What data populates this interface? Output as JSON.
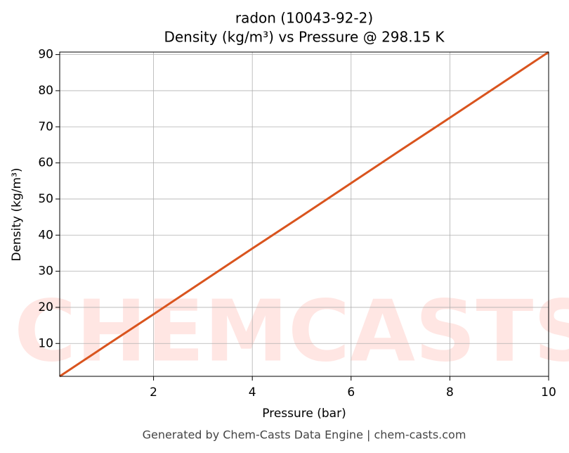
{
  "chart_data": {
    "type": "line",
    "title": "radon (10043-92-2)",
    "subtitle": "Density (kg/m³) vs Pressure @ 298.15 K",
    "x_label": "Pressure (bar)",
    "y_label": "Density (kg/m³)",
    "watermark": "CHEMCASTS",
    "footer": "Generated by Chem-Casts Data Engine | chem-casts.com",
    "x": [
      0.1,
      1,
      2,
      3,
      4,
      5,
      6,
      7,
      8,
      9,
      10
    ],
    "series": [
      {
        "name": "Density",
        "color": "#d9541e",
        "values": [
          0.9,
          9.07,
          18.1,
          27.2,
          36.3,
          45.3,
          54.4,
          63.5,
          72.5,
          81.6,
          90.7
        ]
      }
    ],
    "xlim": [
      0.1,
      10
    ],
    "ylim": [
      0.9,
      90.7
    ],
    "xticks": [
      2,
      4,
      6,
      8,
      10
    ],
    "yticks": [
      10,
      20,
      30,
      40,
      50,
      60,
      70,
      80,
      90
    ],
    "grid": true
  }
}
